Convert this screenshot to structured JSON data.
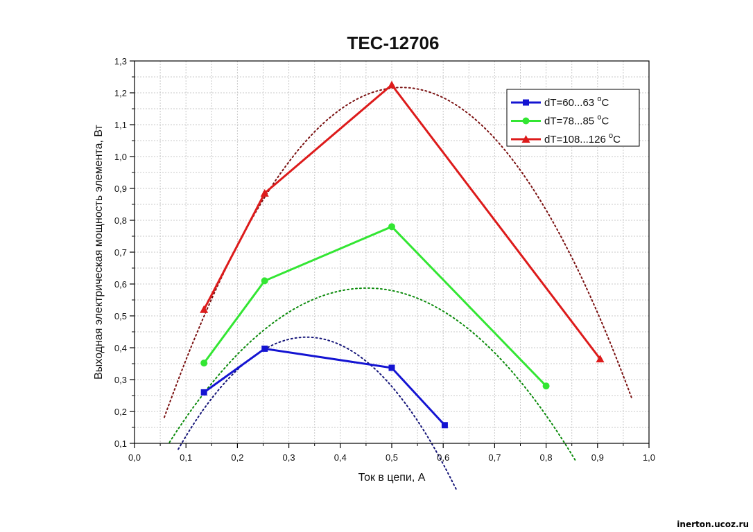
{
  "chart_data": {
    "type": "line",
    "title": "TEC-12706",
    "xlabel": "Ток в цепи, А",
    "ylabel": "Выходная электрическая мощность элемента, Вт",
    "xlim": [
      0.0,
      1.0
    ],
    "ylim": [
      0.1,
      1.3
    ],
    "x_ticks": [
      "0,0",
      "0,1",
      "0,2",
      "0,3",
      "0,4",
      "0,5",
      "0,6",
      "0,7",
      "0,8",
      "0,9",
      "1,0"
    ],
    "y_ticks": [
      "0,1",
      "0,2",
      "0,3",
      "0,4",
      "0,5",
      "0,6",
      "0,7",
      "0,8",
      "0,9",
      "1,0",
      "1,1",
      "1,2",
      "1,3"
    ],
    "grid": true,
    "legend_position": "top-right",
    "series": [
      {
        "name": "dT=60...63 °C",
        "label_main": "dT=60...63 ",
        "label_unit": "C",
        "label_degree": "o",
        "color": "#1414d2",
        "marker": "square",
        "x": [
          0.135,
          0.253,
          0.5,
          0.603
        ],
        "y": [
          0.26,
          0.397,
          0.337,
          0.157
        ],
        "fit": {
          "x_from": 0.085,
          "x_to": 0.625,
          "a": -5.65,
          "b": 3.78,
          "c": -0.199
        }
      },
      {
        "name": "dT=78...85 °C",
        "label_main": "dT=78...85 ",
        "label_unit": "C",
        "label_degree": "o",
        "color": "#33e633",
        "fit_color": "#0a8a0a",
        "marker": "circle",
        "x": [
          0.135,
          0.253,
          0.5,
          0.8
        ],
        "y": [
          0.352,
          0.61,
          0.78,
          0.28
        ],
        "fit": {
          "x_from": 0.068,
          "x_to": 0.857,
          "a": -3.29,
          "b": 2.971,
          "c": -0.0835
        }
      },
      {
        "name": "dT=108...126 °C",
        "label_main": "dT=108...126 ",
        "label_unit": "C",
        "label_degree": "o",
        "color": "#dd1b1b",
        "fit_color": "#7a1010",
        "marker": "triangle",
        "x": [
          0.135,
          0.253,
          0.5,
          0.905
        ],
        "y": [
          0.52,
          0.885,
          1.225,
          0.365
        ],
        "fit": {
          "x_from": 0.058,
          "x_to": 0.966,
          "a": -4.87,
          "b": 5.055,
          "c": -0.095
        }
      }
    ]
  },
  "watermark": "inerton.ucoz.ru"
}
